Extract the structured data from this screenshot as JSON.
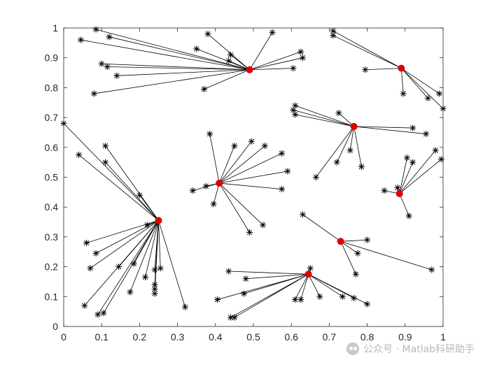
{
  "chart_data": {
    "type": "scatter",
    "title": "",
    "xlabel": "",
    "ylabel": "",
    "xlim": [
      0,
      1
    ],
    "ylim": [
      0,
      1
    ],
    "xticks": [
      "0",
      "0.1",
      "0.2",
      "0.3",
      "0.4",
      "0.5",
      "0.6",
      "0.7",
      "0.8",
      "0.9",
      "1"
    ],
    "yticks": [
      "0",
      "0.1",
      "0.2",
      "0.3",
      "0.4",
      "0.5",
      "0.6",
      "0.7",
      "0.8",
      "0.9",
      "1"
    ],
    "grid": false,
    "legend": "none",
    "center_color": "#e00000",
    "point_color": "#000000",
    "line_color": "#000000",
    "clusters": [
      {
        "center": [
          0.49,
          0.86
        ],
        "members": [
          [
            0.085,
            0.995
          ],
          [
            0.045,
            0.96
          ],
          [
            0.12,
            0.97
          ],
          [
            0.1,
            0.88
          ],
          [
            0.115,
            0.87
          ],
          [
            0.14,
            0.84
          ],
          [
            0.08,
            0.78
          ],
          [
            0.38,
            0.98
          ],
          [
            0.44,
            0.91
          ],
          [
            0.435,
            0.89
          ],
          [
            0.35,
            0.93
          ],
          [
            0.55,
            0.985
          ],
          [
            0.625,
            0.92
          ],
          [
            0.63,
            0.9
          ],
          [
            0.605,
            0.865
          ],
          [
            0.37,
            0.795
          ]
        ]
      },
      {
        "center": [
          0.89,
          0.865
        ],
        "members": [
          [
            0.71,
            0.99
          ],
          [
            0.71,
            0.975
          ],
          [
            0.795,
            0.86
          ],
          [
            0.895,
            0.78
          ],
          [
            0.96,
            0.765
          ],
          [
            0.99,
            0.78
          ],
          [
            1.0,
            0.73
          ]
        ]
      },
      {
        "center": [
          0.765,
          0.67
        ],
        "members": [
          [
            0.61,
            0.74
          ],
          [
            0.605,
            0.725
          ],
          [
            0.61,
            0.71
          ],
          [
            0.725,
            0.715
          ],
          [
            0.92,
            0.665
          ],
          [
            0.955,
            0.645
          ],
          [
            0.755,
            0.59
          ],
          [
            0.785,
            0.535
          ],
          [
            0.72,
            0.55
          ],
          [
            0.665,
            0.5
          ]
        ]
      },
      {
        "center": [
          0.885,
          0.445
        ],
        "members": [
          [
            0.905,
            0.565
          ],
          [
            0.92,
            0.55
          ],
          [
            0.98,
            0.59
          ],
          [
            0.995,
            0.56
          ],
          [
            0.845,
            0.455
          ],
          [
            0.88,
            0.465
          ],
          [
            0.91,
            0.37
          ]
        ]
      },
      {
        "center": [
          0.41,
          0.48
        ],
        "members": [
          [
            0.385,
            0.645
          ],
          [
            0.45,
            0.605
          ],
          [
            0.495,
            0.62
          ],
          [
            0.53,
            0.605
          ],
          [
            0.575,
            0.58
          ],
          [
            0.59,
            0.52
          ],
          [
            0.575,
            0.46
          ],
          [
            0.34,
            0.455
          ],
          [
            0.375,
            0.47
          ],
          [
            0.395,
            0.41
          ],
          [
            0.525,
            0.34
          ],
          [
            0.49,
            0.315
          ]
        ]
      },
      {
        "center": [
          0.25,
          0.355
        ],
        "members": [
          [
            0.0,
            0.68
          ],
          [
            0.04,
            0.575
          ],
          [
            0.11,
            0.605
          ],
          [
            0.11,
            0.55
          ],
          [
            0.2,
            0.44
          ],
          [
            0.06,
            0.28
          ],
          [
            0.085,
            0.245
          ],
          [
            0.07,
            0.195
          ],
          [
            0.145,
            0.2
          ],
          [
            0.185,
            0.21
          ],
          [
            0.22,
            0.34
          ],
          [
            0.24,
            0.19
          ],
          [
            0.255,
            0.195
          ],
          [
            0.24,
            0.14
          ],
          [
            0.24,
            0.125
          ],
          [
            0.24,
            0.11
          ],
          [
            0.215,
            0.165
          ],
          [
            0.175,
            0.115
          ],
          [
            0.055,
            0.07
          ],
          [
            0.09,
            0.04
          ],
          [
            0.105,
            0.045
          ],
          [
            0.32,
            0.065
          ]
        ]
      },
      {
        "center": [
          0.73,
          0.285
        ],
        "members": [
          [
            0.63,
            0.375
          ],
          [
            0.8,
            0.29
          ],
          [
            0.775,
            0.245
          ],
          [
            0.77,
            0.175
          ],
          [
            0.97,
            0.19
          ]
        ]
      },
      {
        "center": [
          0.645,
          0.175
        ],
        "members": [
          [
            0.435,
            0.185
          ],
          [
            0.48,
            0.16
          ],
          [
            0.475,
            0.11
          ],
          [
            0.405,
            0.09
          ],
          [
            0.44,
            0.03
          ],
          [
            0.45,
            0.03
          ],
          [
            0.65,
            0.195
          ],
          [
            0.735,
            0.1
          ],
          [
            0.765,
            0.095
          ],
          [
            0.8,
            0.075
          ],
          [
            0.675,
            0.1
          ],
          [
            0.625,
            0.09
          ],
          [
            0.61,
            0.09
          ]
        ]
      }
    ]
  },
  "watermark": {
    "text": "公众号 · Matlab科研助手",
    "icon": "wechat-icon"
  }
}
